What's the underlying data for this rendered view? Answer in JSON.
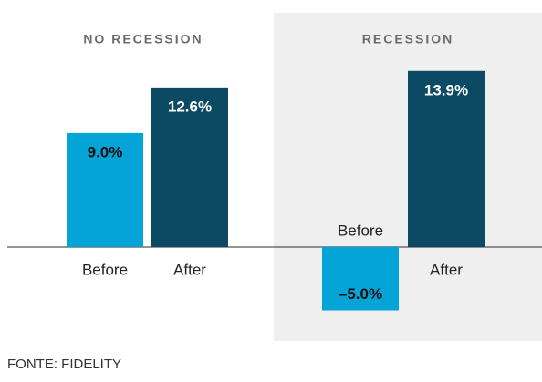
{
  "chart_data": [
    {
      "type": "bar",
      "title": "NO RECESSION",
      "categories": [
        "Before",
        "After"
      ],
      "values": [
        9.0,
        12.6
      ],
      "value_labels": [
        "9.0%",
        "12.6%"
      ],
      "colors": [
        "#05a4d6",
        "#0b4a62"
      ]
    },
    {
      "type": "bar",
      "title": "RECESSION",
      "categories": [
        "Before",
        "After"
      ],
      "values": [
        -5.0,
        13.9
      ],
      "value_labels": [
        "–5.0%",
        "13.9%"
      ],
      "colors": [
        "#05a4d6",
        "#0b4a62"
      ]
    }
  ],
  "source": "FONTE: FIDELITY"
}
